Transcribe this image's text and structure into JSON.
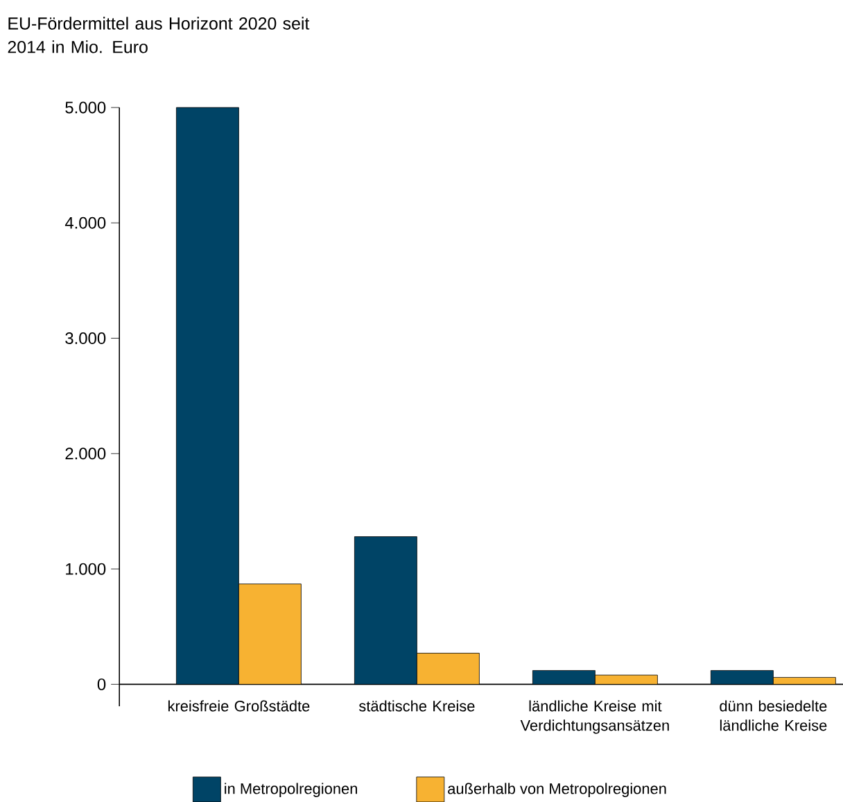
{
  "chart_data": {
    "type": "bar",
    "title": "EU-Fördermittel aus Horizont 2020 seit 2014 in Mio. Euro",
    "categories": [
      "kreisfreie Großstädte",
      "städtische Kreise",
      "ländliche Kreise mit Verdichtungsansätzen",
      "dünn besiedelte ländliche Kreise"
    ],
    "series": [
      {
        "name": "in Metropolregionen",
        "color": "#004466",
        "values": [
          5000,
          1280,
          120,
          120
        ]
      },
      {
        "name": "außerhalb von Metropolregionen",
        "color": "#f7b232",
        "values": [
          870,
          270,
          80,
          60
        ]
      }
    ],
    "ylim": [
      -190,
      5000
    ],
    "yticks": [
      {
        "value": 0,
        "label": "0"
      },
      {
        "value": 1000,
        "label": "1.000"
      },
      {
        "value": 2000,
        "label": "2.000"
      },
      {
        "value": 3000,
        "label": "3.000"
      },
      {
        "value": 4000,
        "label": "4.000"
      },
      {
        "value": 5000,
        "label": "5.000"
      }
    ],
    "legend": "bottom"
  }
}
